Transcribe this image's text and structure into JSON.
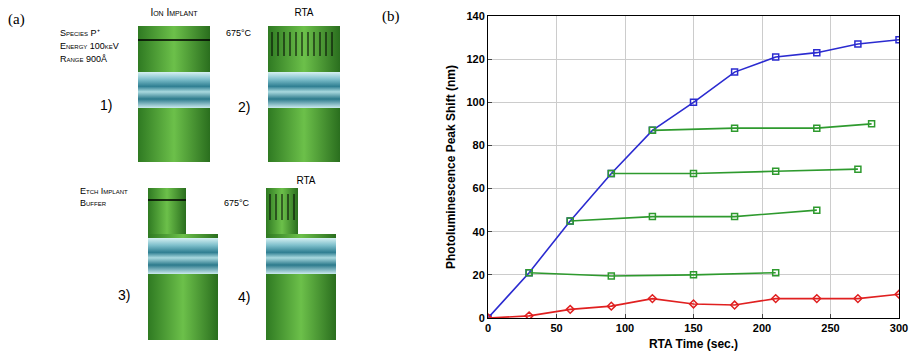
{
  "diagram": {
    "panel": "(a)",
    "steps": [
      {
        "number": "1)",
        "title": "Ion Implant",
        "notes": [
          "Species P⁺",
          "Energy 100keV",
          "Range 900Å"
        ]
      },
      {
        "number": "2)",
        "title": "RTA",
        "notes": [
          "675°C"
        ]
      },
      {
        "number": "3)",
        "title": "Etch Implant Buffer",
        "notes": []
      },
      {
        "number": "4)",
        "title": "RTA",
        "notes": [
          "675°C"
        ]
      }
    ]
  },
  "chart_data": {
    "type": "line",
    "panel": "(b)",
    "x_label": "RTA Time (sec.)",
    "y_label": "Photoluminescence Peak Shift (nm)",
    "xlim": [
      0,
      300
    ],
    "xticks": [
      0,
      50,
      100,
      150,
      200,
      250,
      300
    ],
    "ylim": [
      0,
      140
    ],
    "yticks": [
      0,
      20,
      40,
      60,
      80,
      100,
      120,
      140
    ],
    "grid": true,
    "series": [
      {
        "color": "#2b2bd0",
        "marker": "square",
        "x": [
          0,
          30,
          60,
          90,
          120,
          150,
          180,
          210,
          240,
          270,
          300
        ],
        "values": [
          0,
          21,
          45,
          67,
          87,
          100,
          114,
          121,
          123,
          127,
          129
        ]
      },
      {
        "color": "#2e9a2e",
        "marker": "square",
        "x": [
          30,
          90,
          150,
          210
        ],
        "values": [
          21,
          19.5,
          20,
          21
        ]
      },
      {
        "color": "#2e9a2e",
        "marker": "square",
        "x": [
          60,
          120,
          180,
          240
        ],
        "values": [
          45,
          47,
          47,
          50
        ]
      },
      {
        "color": "#2e9a2e",
        "marker": "square",
        "x": [
          90,
          150,
          210,
          270
        ],
        "values": [
          67,
          67,
          68,
          69
        ]
      },
      {
        "color": "#2e9a2e",
        "marker": "square",
        "x": [
          120,
          180,
          240,
          280
        ],
        "values": [
          87,
          88,
          88,
          90
        ]
      },
      {
        "color": "#e02020",
        "marker": "diamond",
        "x": [
          0,
          30,
          60,
          90,
          120,
          150,
          180,
          210,
          240,
          270,
          300
        ],
        "values": [
          0,
          1,
          4,
          5.5,
          9,
          6.5,
          6,
          9,
          9,
          9,
          11
        ]
      }
    ]
  }
}
